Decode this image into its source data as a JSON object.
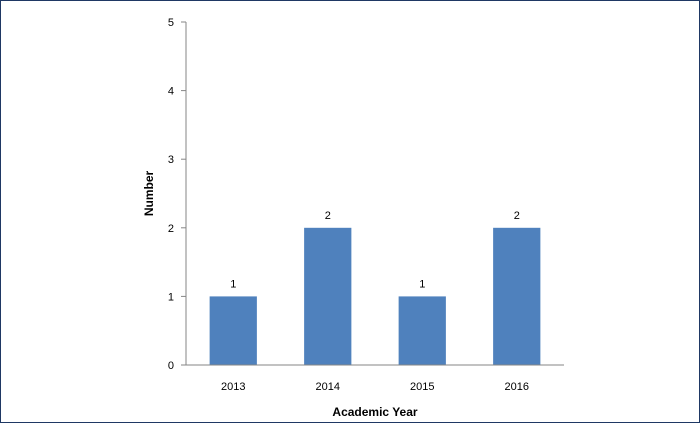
{
  "chart_data": {
    "type": "bar",
    "categories": [
      "2013",
      "2014",
      "2015",
      "2016"
    ],
    "values": [
      1,
      2,
      1,
      2
    ],
    "data_labels": [
      "1",
      "2",
      "1",
      "2"
    ],
    "xlabel": "Academic Year",
    "ylabel": "Number",
    "ylim": [
      0,
      5
    ],
    "yticks": [
      "0",
      "1",
      "2",
      "3",
      "4",
      "5"
    ],
    "grid": false,
    "legend": "none",
    "bar_color": "#4f81bd",
    "axis_color": "#868686"
  }
}
